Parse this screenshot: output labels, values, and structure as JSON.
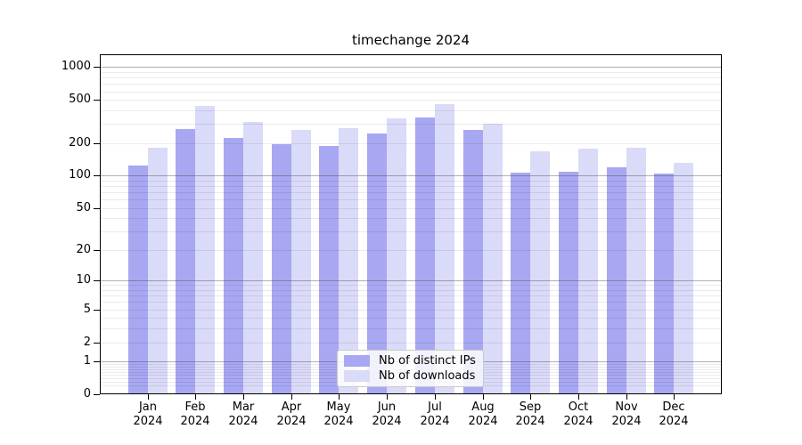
{
  "title": "timechange 2024",
  "chart_data": {
    "type": "bar",
    "title": "timechange 2024",
    "categories": [
      "Jan",
      "Feb",
      "Mar",
      "Apr",
      "May",
      "Jun",
      "Jul",
      "Aug",
      "Sep",
      "Oct",
      "Nov",
      "Dec"
    ],
    "x_year_label": "2024",
    "series": [
      {
        "name": "Nb of distinct IPs",
        "color": "#a7a7f2",
        "values": [
          124,
          270,
          224,
          194,
          188,
          246,
          342,
          265,
          106,
          109,
          120,
          105
        ]
      },
      {
        "name": "Nb of downloads",
        "color": "#dadaf9",
        "values": [
          180,
          440,
          313,
          265,
          275,
          336,
          460,
          302,
          168,
          178,
          181,
          132
        ]
      }
    ],
    "yscale": "log10(1+v)",
    "yticks": [
      0,
      1,
      2,
      5,
      10,
      20,
      50,
      100,
      200,
      500,
      1000
    ],
    "ytick_labels": [
      "0",
      "1",
      "2",
      "5",
      "10",
      "20",
      "50",
      "100",
      "200",
      "500",
      "1000"
    ],
    "ylim": [
      0,
      1310
    ],
    "grid": "on",
    "grid_major_at": [
      1,
      10,
      100,
      1000
    ],
    "legend_position": "lower center",
    "xlabel": "",
    "ylabel": ""
  }
}
